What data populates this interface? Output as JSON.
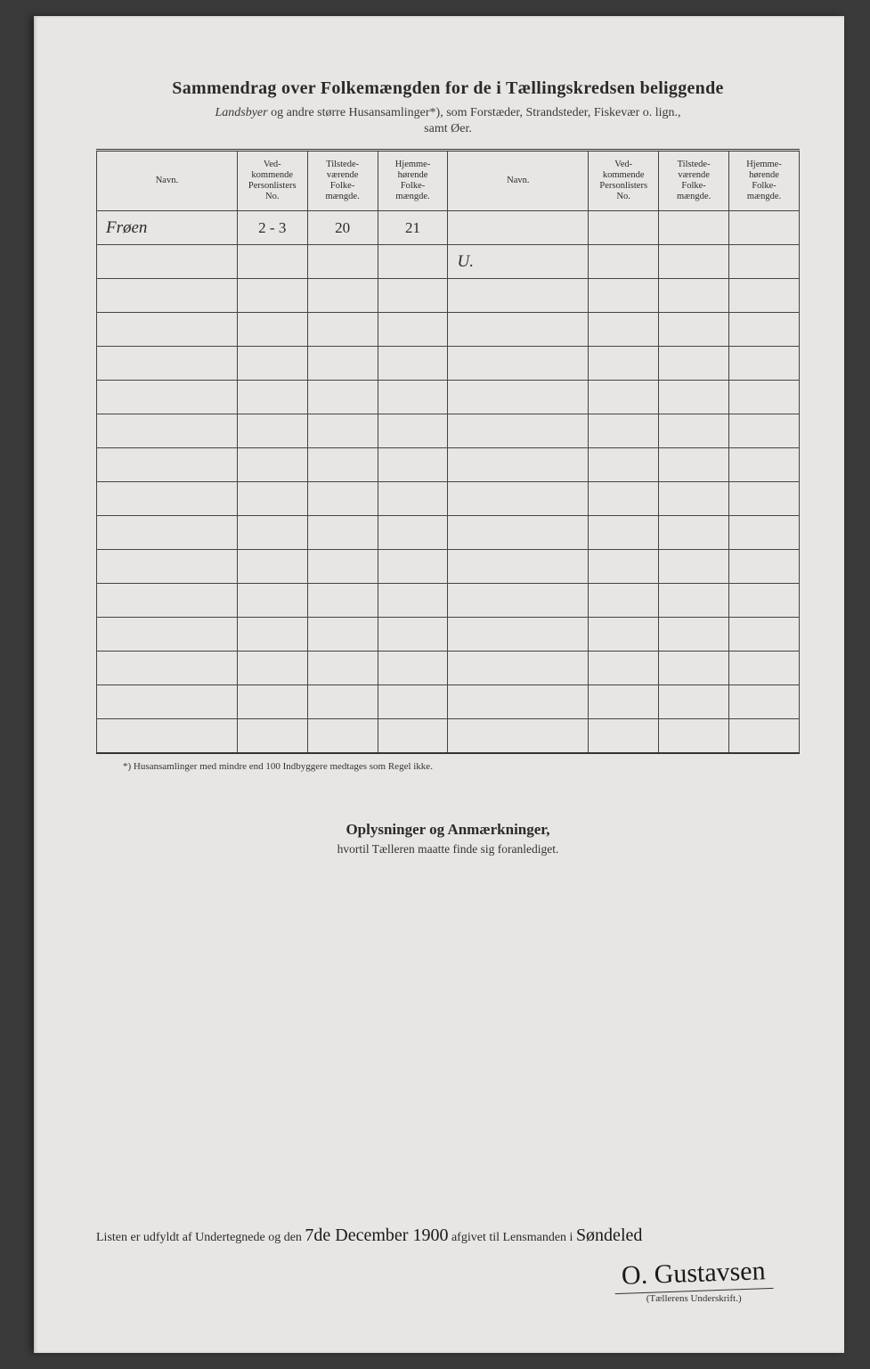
{
  "header": {
    "title": "Sammendrag over Folkemængden for de i Tællingskredsen beliggende",
    "subtitle_prefix_italic": "Landsbyer",
    "subtitle_rest": " og andre større Husansamlinger*), som Forstæder, Strandsteder, Fiskevær o. lign.,",
    "subtitle_line2": "samt Øer."
  },
  "table": {
    "columns": {
      "navn": "Navn.",
      "personlister": "Ved-\nkommende\nPersonlisters\nNo.",
      "tilstede": "Tilstede-\nværende\nFolke-\nmængde.",
      "hjemme": "Hjemme-\nhørende\nFolke-\nmængde."
    },
    "row1": {
      "navn": "Frøen",
      "list_no": "2 - 3",
      "tilstede": "20",
      "hjemme": "21"
    },
    "row2_right_navn": "U.",
    "blank_rows": 14
  },
  "footnote": "*) Husansamlinger med mindre end 100 Indbyggere medtages som Regel ikke.",
  "section2": {
    "title": "Oplysninger og Anmærkninger,",
    "sub": "hvortil Tælleren maatte finde sig foranlediget."
  },
  "bottom": {
    "line_prefix": "Listen er udfyldt af Undertegnede og den ",
    "date_hand": "7de December 1900",
    "line_mid": " afgivet til Lensmanden i ",
    "place_hand": "Søndeled",
    "signature": "O. Gustavsen",
    "sig_label": "(Tællerens Underskrift.)"
  },
  "style": {
    "page_bg": "#e8e6e4",
    "ink": "#2a2a2a",
    "border": "#444"
  }
}
